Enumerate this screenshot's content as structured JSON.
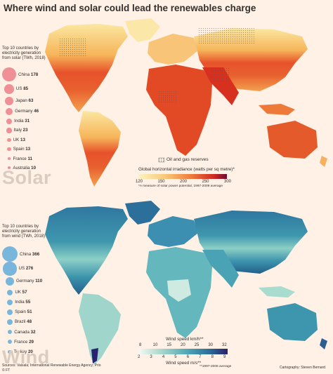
{
  "title": "Where wind and solar could lead the renewables charge",
  "solar": {
    "panel_label": "Solar",
    "legend_intro": "Top 10 countries by electricity generation from solar (TWh, 2018)",
    "countries": [
      {
        "name": "China",
        "value": 178
      },
      {
        "name": "US",
        "value": 85
      },
      {
        "name": "Japan",
        "value": 63
      },
      {
        "name": "Germany",
        "value": 46
      },
      {
        "name": "India",
        "value": 31
      },
      {
        "name": "Italy",
        "value": 23
      },
      {
        "name": "UK",
        "value": 13
      },
      {
        "name": "Spain",
        "value": 13
      },
      {
        "name": "France",
        "value": 11
      },
      {
        "name": "Australia",
        "value": 10
      }
    ],
    "reserves_label": "Oil and gas reserves",
    "scale_title": "Global horizontal irradiance (watts per sq metre)*",
    "scale_ticks": [
      "120",
      "150",
      "200",
      "250",
      "300"
    ],
    "footnote": "*A measure of solar power potential, 1997-2009 average",
    "colors": {
      "low": "#fdf0b0",
      "mid": "#f29a47",
      "high": "#d7301f",
      "max": "#7a0c2e",
      "bubble": "#ef8f96"
    }
  },
  "wind": {
    "panel_label": "Wind",
    "legend_intro": "Top 10 countries by electricity generation from wind (TWh, 2018)",
    "countries": [
      {
        "name": "China",
        "value": 366
      },
      {
        "name": "US",
        "value": 276
      },
      {
        "name": "Germany",
        "value": 110
      },
      {
        "name": "UK",
        "value": 57
      },
      {
        "name": "India",
        "value": 55
      },
      {
        "name": "Spain",
        "value": 51
      },
      {
        "name": "Brazil",
        "value": 48
      },
      {
        "name": "Canada",
        "value": 32
      },
      {
        "name": "France",
        "value": 29
      },
      {
        "name": "Turkey",
        "value": 20
      }
    ],
    "scale_title_top": "Wind speed km/h**",
    "scale_ticks_top": [
      "8",
      "10",
      "15",
      "20",
      "25",
      "30",
      "32"
    ],
    "scale_ticks_bottom": [
      "2",
      "3",
      "4",
      "5",
      "6",
      "7",
      "8",
      "9"
    ],
    "scale_title_bottom": "Wind speed m/s**",
    "footnote": "**1997-2006 average",
    "colors": {
      "low": "#f2f7f4",
      "mid": "#4fa9b8",
      "high": "#1d5f86",
      "max": "#27236e",
      "bubble": "#79b6dc"
    }
  },
  "sources": "Sources: Vaisala; International Renewable Energy Agency; Prio",
  "copyright": "© FT",
  "credit": "Cartography: Steven Bernard"
}
